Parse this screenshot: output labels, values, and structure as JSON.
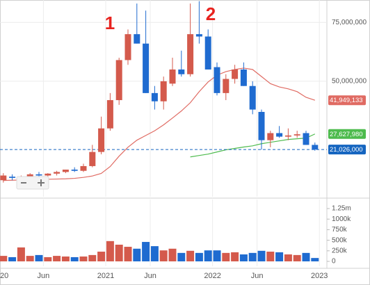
{
  "chart_data": {
    "type": "candlestick",
    "x": [
      "2020-01",
      "2020-02",
      "2020-03",
      "2020-04",
      "2020-05",
      "2020-06",
      "2020-07",
      "2020-08",
      "2020-09",
      "2020-10",
      "2020-11",
      "2020-12",
      "2021-01",
      "2021-02",
      "2021-03",
      "2021-04",
      "2021-05",
      "2021-06",
      "2021-07",
      "2021-08",
      "2021-09",
      "2021-10",
      "2021-11",
      "2021-12",
      "2022-01",
      "2022-02",
      "2022-03",
      "2022-04",
      "2022-05",
      "2022-06",
      "2022-07",
      "2022-08",
      "2022-09",
      "2022-10",
      "2022-11",
      "2022-12"
    ],
    "open": [
      8000000,
      9500000,
      9000000,
      9500000,
      10500000,
      10000000,
      10800000,
      11500000,
      12500000,
      12000000,
      14000000,
      20000000,
      30000000,
      42000000,
      59000000,
      70000000,
      66000000,
      45000000,
      41500000,
      49000000,
      55000000,
      53000000,
      70000000,
      69000000,
      56000000,
      45000000,
      51000000,
      55000000,
      48000000,
      37000000,
      25000000,
      28000000,
      26500000,
      27000000,
      28000000,
      23000000
    ],
    "high": [
      11000000,
      10500000,
      10000000,
      11000000,
      11500000,
      11000000,
      12000000,
      12500000,
      13500000,
      15000000,
      23000000,
      35000000,
      45000000,
      60000000,
      72000000,
      83000000,
      80000000,
      48000000,
      52000000,
      60000000,
      63000000,
      83000000,
      84000000,
      72000000,
      58000000,
      53000000,
      57000000,
      58000000,
      50000000,
      38000000,
      29000000,
      31000000,
      30000000,
      29000000,
      29000000,
      24000000
    ],
    "low": [
      7000000,
      8000000,
      8500000,
      9000000,
      9500000,
      9500000,
      10000000,
      11000000,
      11500000,
      11500000,
      13500000,
      19000000,
      29000000,
      40000000,
      57000000,
      66000000,
      45000000,
      38000000,
      38000000,
      48000000,
      52000000,
      52000000,
      66000000,
      55000000,
      44000000,
      42000000,
      49000000,
      48000000,
      36000000,
      21000000,
      22000000,
      26000000,
      25000000,
      26000000,
      23000000,
      20500000
    ],
    "close": [
      10000000,
      9000000,
      9500000,
      10500000,
      10000000,
      10800000,
      11500000,
      12500000,
      12000000,
      14000000,
      20000000,
      30000000,
      42000000,
      59000000,
      70000000,
      66000000,
      45000000,
      41500000,
      50000000,
      55000000,
      53000000,
      70000000,
      69000000,
      55000000,
      45000000,
      51000000,
      55000000,
      48000000,
      38000000,
      25000000,
      28000000,
      26500000,
      27000000,
      27500000,
      23000000,
      21026000
    ],
    "up_color": "#d45a4c",
    "down_color": "#1f6bd0",
    "ylim": [
      1000000,
      84500000
    ],
    "yticks": [
      {
        "value": 50000000,
        "label": "50,000,000"
      },
      {
        "value": 75000000,
        "label": "75,000,000"
      }
    ],
    "xticks": [
      {
        "value": "2020-01",
        "label": "20"
      },
      {
        "value": "2020-06",
        "label": "Jun"
      },
      {
        "value": "2021-01",
        "label": "2021"
      },
      {
        "value": "2021-06",
        "label": "Jun"
      },
      {
        "value": "2022-01",
        "label": "2022"
      },
      {
        "value": "2022-06",
        "label": "Jun"
      },
      {
        "value": "2023-01",
        "label": "2023"
      }
    ],
    "grid": true,
    "last_price_label": "21,026,000",
    "last_price_color": "#1565c0",
    "moving_averages": [
      {
        "color": "#e06b63",
        "last_value_label": "41,949,133",
        "values": [
          7900000,
          8000000,
          8100000,
          8200000,
          8300000,
          8400000,
          8500000,
          8600000,
          8800000,
          9200000,
          9800000,
          10900000,
          13800000,
          18200000,
          22000000,
          25000000,
          27000000,
          29000000,
          31500000,
          34400000,
          37400000,
          40900000,
          45600000,
          49700000,
          52600000,
          54100000,
          55000000,
          55600000,
          55000000,
          52000000,
          49000000,
          47600000,
          46800000,
          45600000,
          43200000,
          41949133
        ]
      },
      {
        "color": "#4dbb4d",
        "last_value_label": "27,627,980",
        "values": [
          null,
          null,
          null,
          null,
          null,
          null,
          null,
          null,
          null,
          null,
          null,
          null,
          null,
          null,
          null,
          null,
          null,
          null,
          null,
          null,
          null,
          17900000,
          18500000,
          19100000,
          20000000,
          20900000,
          21500000,
          22100000,
          22600000,
          23500000,
          24100000,
          24700000,
          25300000,
          25600000,
          25900000,
          27627980
        ]
      }
    ],
    "volume": {
      "values": [
        130000,
        100000,
        330000,
        130000,
        150000,
        100000,
        130000,
        115000,
        100000,
        115000,
        150000,
        230000,
        480000,
        395000,
        345000,
        300000,
        460000,
        360000,
        260000,
        300000,
        200000,
        250000,
        200000,
        260000,
        260000,
        200000,
        215000,
        165000,
        200000,
        250000,
        230000,
        215000,
        165000,
        150000,
        200000,
        80000
      ],
      "ylim": [
        -115000,
        1415000
      ],
      "yticks": [
        0,
        {
          "value": 250000,
          "label": "250k"
        },
        {
          "value": 500000,
          "label": "500k"
        },
        {
          "value": 750000,
          "label": "750k"
        },
        {
          "value": 1000000,
          "label": "1000k"
        },
        {
          "value": 1250000,
          "label": "1.25m"
        }
      ]
    },
    "annotations": [
      {
        "text": "1",
        "color": "#e8231f"
      },
      {
        "text": "2",
        "color": "#e8231f"
      }
    ]
  }
}
